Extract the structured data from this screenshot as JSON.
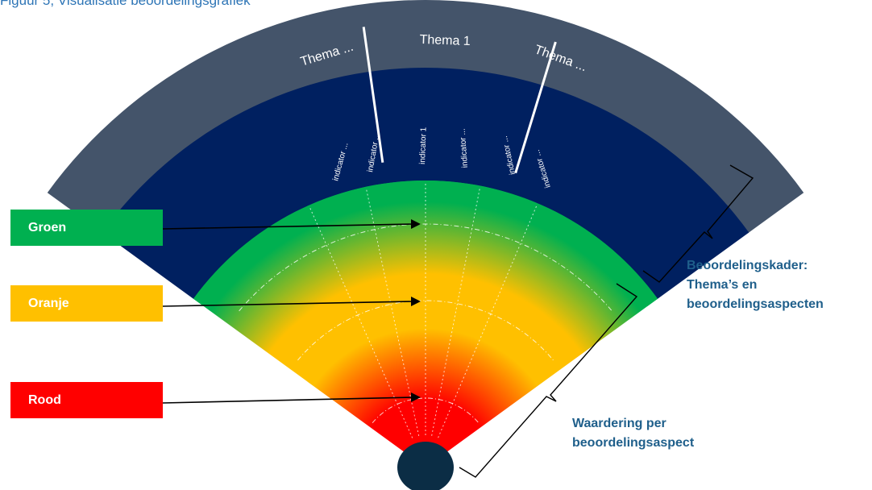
{
  "caption": "Figuur 5, Visualisatie beoordelingsgrafiek",
  "themes": [
    "Thema ...",
    "Thema 1",
    "Thema ..."
  ],
  "indicators": [
    "indicator ...",
    "indicator ...",
    "indicator 1",
    "indicator ...",
    "indicator ...",
    "indicator ..."
  ],
  "legend": [
    {
      "label": "Groen",
      "color": "#00b050"
    },
    {
      "label": "Oranje",
      "color": "#ffc000"
    },
    {
      "label": "Rood",
      "color": "#ff0000"
    }
  ],
  "annotations": {
    "framework": [
      "Beoordelingskader:",
      "Thema’s en",
      "beoordelingsaspecten"
    ],
    "rating": [
      "Waardering per",
      "beoordelingsaspect"
    ]
  },
  "colors": {
    "theme_band": "#44546a",
    "indicator_band": "#002060",
    "hub": "#0b2d45",
    "label_text": "#1f5f8b"
  }
}
